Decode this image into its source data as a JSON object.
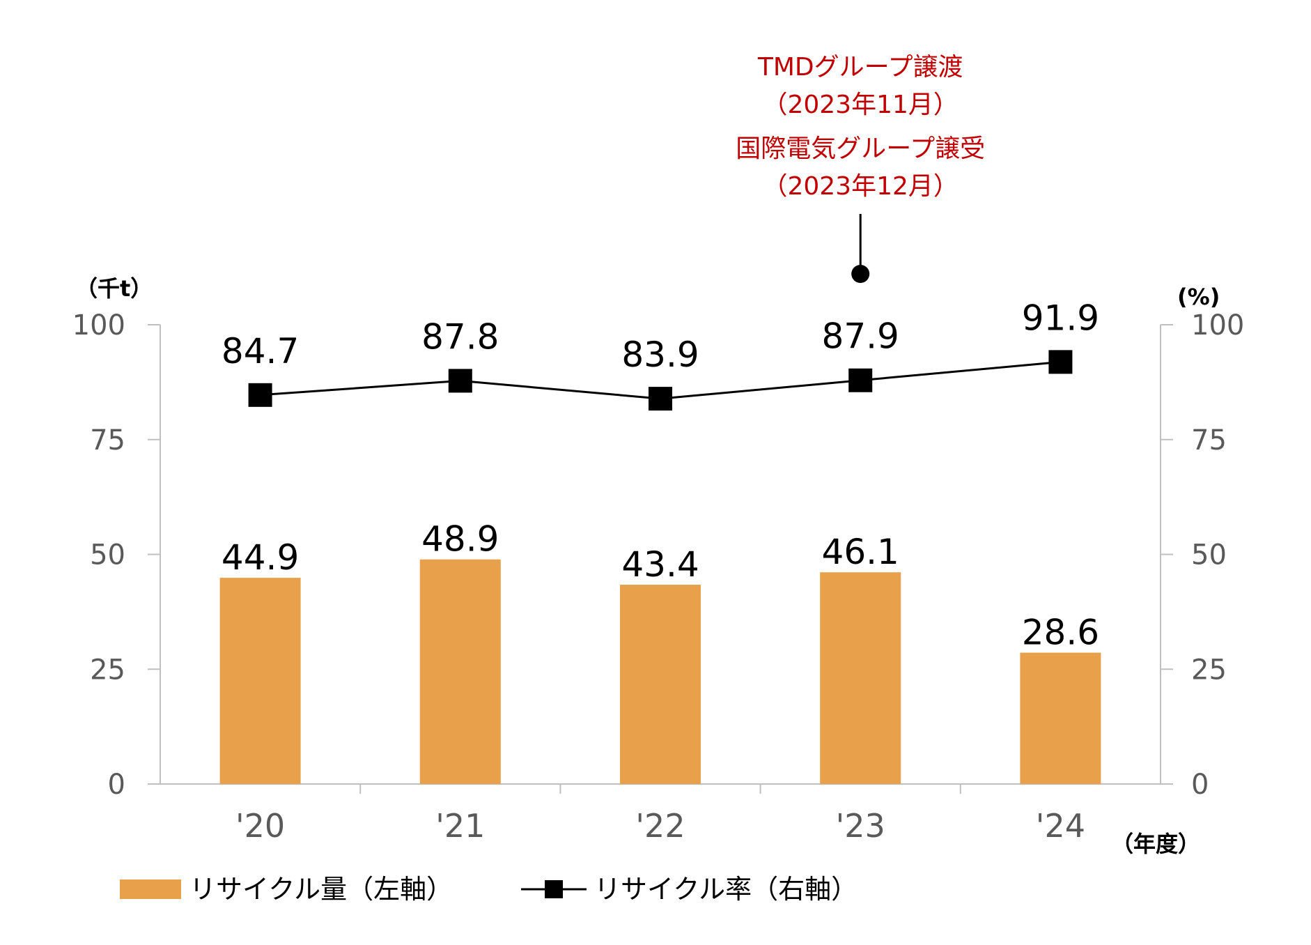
{
  "chart_data": {
    "type": "bar+line",
    "categories": [
      "'20",
      "'21",
      "'22",
      "'23",
      "'24"
    ],
    "series": [
      {
        "name": "リサイクル量（左軸）",
        "type": "bar",
        "axis": "left",
        "color": "#E8A04A",
        "values": [
          44.9,
          48.9,
          43.4,
          46.1,
          28.6
        ],
        "labels": [
          "44.9",
          "48.9",
          "43.4",
          "46.1",
          "28.6"
        ]
      },
      {
        "name": "リサイクル率（右軸）",
        "type": "line",
        "axis": "right",
        "color": "#000000",
        "marker": "square",
        "values": [
          84.7,
          87.8,
          83.9,
          87.9,
          91.9
        ],
        "labels": [
          "84.7",
          "87.8",
          "83.9",
          "87.9",
          "91.9"
        ]
      }
    ],
    "y_left": {
      "unit": "（千t）",
      "range": [
        0,
        100
      ],
      "ticks": [
        "0",
        "25",
        "50",
        "75",
        "100"
      ]
    },
    "y_right": {
      "unit": "(%)",
      "range": [
        0,
        100
      ],
      "ticks": [
        "0",
        "25",
        "50",
        "75",
        "100"
      ]
    },
    "x_unit": "（年度）",
    "annotation": {
      "category_index": 3,
      "lines": [
        "TMDグループ譲渡",
        "（2023年11月）",
        "国際電気グループ譲受",
        "（2023年12月）"
      ],
      "color": "#C00000"
    },
    "legend": "bottom-left",
    "grid": false
  }
}
